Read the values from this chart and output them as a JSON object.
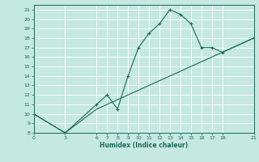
{
  "xlabel": "Humidex (Indice chaleur)",
  "bg_color": "#c5e8e0",
  "line_color": "#1a6b5a",
  "line1_x": [
    0,
    3,
    6,
    7,
    8,
    9,
    10,
    11,
    12,
    13,
    14,
    15,
    16,
    17,
    18,
    21
  ],
  "line1_y": [
    10,
    8,
    11,
    12,
    10.5,
    14,
    17,
    18.5,
    19.5,
    21,
    20.5,
    19.5,
    17,
    17,
    16.5,
    18
  ],
  "line2_x": [
    0,
    3,
    6,
    7,
    8,
    9,
    10,
    11,
    12,
    13,
    14,
    15,
    16,
    17,
    18,
    21
  ],
  "line2_y": [
    10,
    8,
    10.5,
    11,
    11.5,
    12,
    12.5,
    13,
    13.5,
    14,
    14.5,
    15,
    15.5,
    16,
    16.5,
    18
  ],
  "xlim": [
    0,
    21
  ],
  "ylim": [
    8,
    21.5
  ],
  "xticks": [
    0,
    3,
    6,
    7,
    8,
    9,
    10,
    11,
    12,
    13,
    14,
    15,
    16,
    17,
    18,
    21
  ],
  "yticks": [
    8,
    9,
    10,
    11,
    12,
    13,
    14,
    15,
    16,
    17,
    18,
    19,
    20,
    21
  ]
}
